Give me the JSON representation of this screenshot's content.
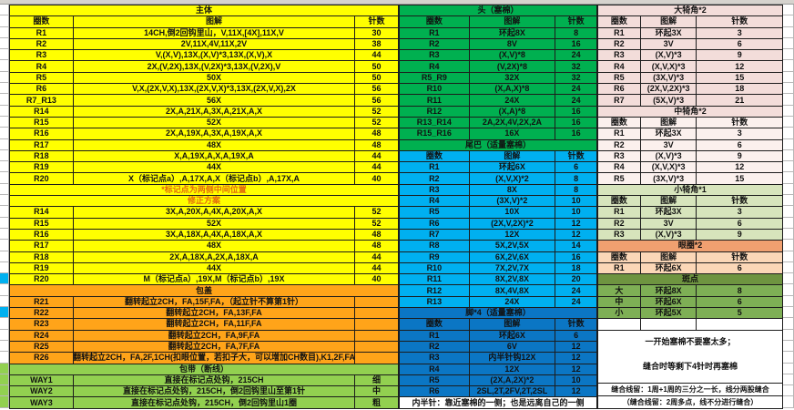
{
  "colors": {
    "main_yellow": "#FFFF00",
    "cover_orange": "#FFA419",
    "strap_light_green": "#92D050",
    "head_green": "#00B050",
    "tail_blue": "#00B0F0",
    "feet_dark_blue": "#0B76C4",
    "horn_pink": "#F3DDDA",
    "small_horn_sage": "#D7E4BC",
    "eye_ring_salmon": "#F0A070",
    "spots_green": "#7EAF55",
    "note_text_orange": "#E36C0A"
  },
  "cols": [
    "圈数",
    "图解",
    "针数"
  ],
  "left": {
    "title": "主体",
    "rows": [
      [
        "R1",
        "14CH,倒2回钩里山，V,11X,[4X],11X,V",
        "30"
      ],
      [
        "R2",
        "2V,11X,4V,11X,2V",
        "38"
      ],
      [
        "R3",
        "V,(X,V),13X,(X,V)*3,13X,(X,V),X",
        "44"
      ],
      [
        "R4",
        "2X,(V,2X),13X,(V,2X)*3,13X,(V,2X),V",
        "50"
      ],
      [
        "R5",
        "50X",
        "50"
      ],
      [
        "R6",
        "V,X,(2X,V,X),13X,(2X,V,X)*3,13X,(2X,V,X),2X",
        "56"
      ],
      [
        "R7_R13",
        "56X",
        "56"
      ],
      [
        "R14",
        "2X,A,21X,A,3X,A,21X,A,X",
        "52"
      ],
      [
        "R15",
        "52X",
        "52"
      ],
      [
        "R16",
        "2X,A,19X,A,3X,A,19X,A,X",
        "48"
      ],
      [
        "R17",
        "48X",
        "48"
      ],
      [
        "R18",
        "X,A,19X,A,X,A,19X,A",
        "44"
      ],
      [
        "R19",
        "44X",
        "44"
      ],
      [
        "R20",
        "X（标记点a）,A,17X,A,X（标记点b）,A,17X,A",
        "40"
      ]
    ],
    "marker_note": "*标记点为两侧中间位置",
    "fix_title": "修正方案",
    "fix_rows": [
      [
        "R14",
        "3X,A,20X,A,4X,A,20X,A,X",
        "52"
      ],
      [
        "R15",
        "52X",
        "52"
      ],
      [
        "R16",
        "3X,A,18X,A,4X,A,18X,A,X",
        "48"
      ],
      [
        "R17",
        "48X",
        "48"
      ],
      [
        "R18",
        "2X,A,18X,A,2X,A,18X,A",
        "44"
      ],
      [
        "R19",
        "44X",
        "44"
      ],
      [
        "R20",
        "M（标记点a）,19X,M（标记点b）,19X",
        "40"
      ]
    ],
    "cover_title": "包盖",
    "cover_rows": [
      [
        "R21",
        "翻转起立2CH，FA,15F,FA，（起立针不算第1针）",
        ""
      ],
      [
        "R22",
        "翻转起立2CH，FA,13F,FA",
        ""
      ],
      [
        "R23",
        "翻转起立2CH，FA,11F,FA",
        ""
      ],
      [
        "R24",
        "翻转起立2CH，FA,9F,FA",
        ""
      ],
      [
        "R25",
        "翻转起立2CH，FA,7F,FA",
        ""
      ],
      [
        "R26",
        "翻转起立2CH，FA,2F,1CH(扣眼位置，若扣子大，可以增加CH数目),K1,2F,FA",
        ""
      ]
    ],
    "strap_title": "包带（断线）",
    "strap_rows": [
      [
        "WAY1",
        "直接在标记点处钩，215CH",
        "细"
      ],
      [
        "WAY2",
        "直接在标记点处钩，215CH，倒2回钩里山至第1针",
        "中"
      ],
      [
        "WAY3",
        "直接在标记点处钩，215CH，倒2回钩里山1圈",
        "粗"
      ]
    ]
  },
  "middle": {
    "head": {
      "title": "头（塞棉）",
      "rows": [
        [
          "R1",
          "环起8X",
          "8"
        ],
        [
          "R2",
          "8V",
          "16"
        ],
        [
          "R3",
          "(X,V)*8",
          "24"
        ],
        [
          "R4",
          "(V,2X)*8",
          "32"
        ],
        [
          "R5_R9",
          "32X",
          "32"
        ],
        [
          "R10",
          "(X,A,X)*8",
          "24"
        ],
        [
          "R11",
          "24X",
          "24"
        ],
        [
          "R12",
          "(X,A)*8",
          "16"
        ],
        [
          "R13_R14",
          "2A,2X,4V,2X,2A",
          "16"
        ],
        [
          "R15_R16",
          "16X",
          "16"
        ]
      ]
    },
    "tail": {
      "title": "尾巴（适量塞棉）",
      "rows": [
        [
          "R1",
          "环起6X",
          "6"
        ],
        [
          "R2",
          "(X,V,X)*2",
          "8"
        ],
        [
          "R3",
          "8X",
          "8"
        ],
        [
          "R4",
          "(3X,V)*2",
          "10"
        ],
        [
          "R5",
          "10X",
          "10"
        ],
        [
          "R6",
          "(2X,V,2X)*2",
          "12"
        ],
        [
          "R7",
          "12X",
          "12"
        ],
        [
          "R8",
          "5X,2V,5X",
          "14"
        ],
        [
          "R9",
          "6X,2V,6X",
          "16"
        ],
        [
          "R10",
          "7X,2V,7X",
          "18"
        ],
        [
          "R11",
          "8X,2V,8X",
          "20"
        ],
        [
          "R12",
          "8X,4V,8X",
          "24"
        ],
        [
          "R13",
          "24X",
          "24"
        ]
      ]
    },
    "feet": {
      "title": "脚*4（适量塞棉）",
      "rows": [
        [
          "R1",
          "环起6X",
          "6"
        ],
        [
          "R2",
          "6V",
          "12"
        ],
        [
          "R3",
          "内半针钩12X",
          "12"
        ],
        [
          "R4",
          "12X",
          "12"
        ],
        [
          "R5",
          "(2X,A,2X)*2",
          "10"
        ],
        [
          "R6",
          "2SL,2T,2FV,2T,2SL",
          "12"
        ]
      ]
    },
    "half_stitch_note": "内半针：靠近塞棉的一侧；也是远离自己的一侧"
  },
  "right": {
    "big_horn": {
      "title": "大犄角*2",
      "rows": [
        [
          "R1",
          "环起3X",
          "3"
        ],
        [
          "R2",
          "3V",
          "6"
        ],
        [
          "R3",
          "(X,V)*3",
          "9"
        ],
        [
          "R4",
          "(X,V,X)*3",
          "12"
        ],
        [
          "R5",
          "(3X,V)*3",
          "15"
        ],
        [
          "R6",
          "(2X,V,2X)*3",
          "18"
        ],
        [
          "R7",
          "(5X,V)*3",
          "21"
        ]
      ]
    },
    "mid_horn": {
      "title": "中犄角*2",
      "rows": [
        [
          "R1",
          "环起3X",
          "3"
        ],
        [
          "R2",
          "3V",
          "6"
        ],
        [
          "R3",
          "(X,V)*3",
          "9"
        ],
        [
          "R4",
          "(X,V,X)*3",
          "12"
        ],
        [
          "R5",
          "(3X,V)*3",
          "15"
        ]
      ]
    },
    "small_horn": {
      "title": "小犄角*1",
      "rows": [
        [
          "R1",
          "环起3X",
          "3"
        ],
        [
          "R2",
          "3V",
          "6"
        ],
        [
          "R3",
          "(X,V)*3",
          "9"
        ]
      ]
    },
    "eye_ring": {
      "title": "眼圈*2",
      "rows": [
        [
          "R1",
          "环起6X",
          "6"
        ]
      ]
    },
    "spots": {
      "title": "斑点",
      "rows": [
        [
          "大",
          "环起8X",
          "8"
        ],
        [
          "中",
          "环起6X",
          "6"
        ],
        [
          "小",
          "环起5X",
          "5"
        ]
      ]
    },
    "notes": [
      "一开始塞棉不要塞太多；",
      "缝合时等剩下4针时再塞棉",
      "缝合线留：1周+1周的三分之一长，线分两股缝合",
      "（缝合线留：2周多点，线不分进行缝合）"
    ]
  }
}
